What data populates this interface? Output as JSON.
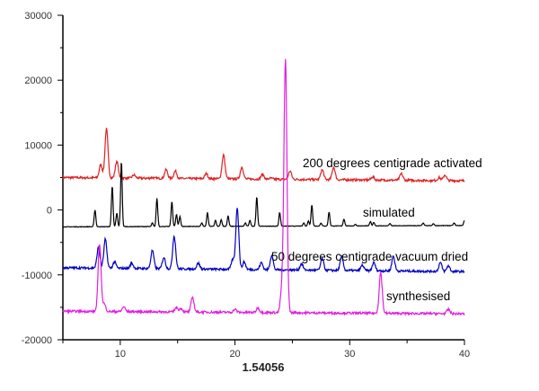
{
  "chart_data": {
    "type": "line",
    "title": "",
    "xlabel": "1.54056",
    "ylabel": "",
    "xlim": [
      5,
      40
    ],
    "ylim": [
      -20000,
      30000
    ],
    "xticks": [
      10,
      20,
      30,
      40
    ],
    "yticks": [
      30000,
      20000,
      10000,
      0,
      -10000,
      -20000
    ],
    "ytick_labels": [
      "30000",
      "20000",
      "10000",
      "0",
      "-10000",
      "-20000"
    ],
    "xtick_labels": [
      "10",
      "20",
      "30",
      "40"
    ],
    "grid": false,
    "series": [
      {
        "name": "200 degrees centigrade activated",
        "color": "#e02020",
        "baseline": [
          5000,
          4500
        ],
        "peaks": [
          [
            8.3,
            7000
          ],
          [
            8.8,
            12500
          ],
          [
            9.7,
            7500
          ],
          [
            11.2,
            5400
          ],
          [
            12.8,
            5000
          ],
          [
            14.0,
            6200
          ],
          [
            14.8,
            6000
          ],
          [
            17.5,
            5600
          ],
          [
            19.0,
            8500
          ],
          [
            20.6,
            6600
          ],
          [
            22.4,
            5500
          ],
          [
            23.1,
            4900
          ],
          [
            24.8,
            6000
          ],
          [
            27.6,
            6200
          ],
          [
            28.6,
            6600
          ],
          [
            32.0,
            5100
          ],
          [
            34.5,
            5600
          ],
          [
            37.8,
            5000
          ],
          [
            38.3,
            5400
          ]
        ]
      },
      {
        "name": "simulated",
        "color": "#000000",
        "baseline": [
          -2600,
          -2400
        ],
        "peaks": [
          [
            7.8,
            0
          ],
          [
            9.3,
            3700
          ],
          [
            9.7,
            -500
          ],
          [
            10.1,
            7500
          ],
          [
            12.8,
            -2000
          ],
          [
            13.2,
            1800
          ],
          [
            14.5,
            1300
          ],
          [
            14.9,
            -700
          ],
          [
            15.2,
            -1000
          ],
          [
            17.1,
            -2000
          ],
          [
            17.6,
            -400
          ],
          [
            18.3,
            -1600
          ],
          [
            18.8,
            -1500
          ],
          [
            19.4,
            -900
          ],
          [
            20.9,
            -2000
          ],
          [
            21.3,
            -1600
          ],
          [
            21.9,
            2000
          ],
          [
            23.9,
            -400
          ],
          [
            26.0,
            -2000
          ],
          [
            26.4,
            -1700
          ],
          [
            26.7,
            800
          ],
          [
            27.5,
            -2000
          ],
          [
            28.2,
            -300
          ],
          [
            29.5,
            -1400
          ],
          [
            30.5,
            -2200
          ],
          [
            31.8,
            -1800
          ],
          [
            32.1,
            -1900
          ],
          [
            33.5,
            -2100
          ],
          [
            36.4,
            -2000
          ],
          [
            37.3,
            -2100
          ],
          [
            39.1,
            -2000
          ],
          [
            40.0,
            -1600
          ]
        ]
      },
      {
        "name": "50 degrees centigrade vacuum dried",
        "color": "#0000c0",
        "baseline": [
          -8900,
          -9500
        ],
        "peaks": [
          [
            8.1,
            -5800
          ],
          [
            8.7,
            -4500
          ],
          [
            9.5,
            -8000
          ],
          [
            11.0,
            -8200
          ],
          [
            12.8,
            -6200
          ],
          [
            13.8,
            -7300
          ],
          [
            14.7,
            -4000
          ],
          [
            16.8,
            -8200
          ],
          [
            19.8,
            -7700
          ],
          [
            20.2,
            400
          ],
          [
            20.8,
            -8000
          ],
          [
            22.3,
            -8100
          ],
          [
            23.2,
            -7000
          ],
          [
            25.8,
            -8300
          ],
          [
            27.6,
            -7500
          ],
          [
            29.3,
            -7200
          ],
          [
            31.1,
            -8500
          ],
          [
            32.1,
            -8100
          ],
          [
            33.8,
            -7100
          ],
          [
            37.9,
            -8100
          ],
          [
            38.6,
            -8600
          ]
        ]
      },
      {
        "name": "synthesised",
        "color": "#e020e0",
        "baseline": [
          -15600,
          -16000
        ],
        "peaks": [
          [
            8.2,
            -5300
          ],
          [
            8.6,
            -14500
          ],
          [
            10.3,
            -14900
          ],
          [
            14.9,
            -15000
          ],
          [
            15.3,
            -15200
          ],
          [
            16.3,
            -13500
          ],
          [
            20.0,
            -15300
          ],
          [
            22.0,
            -15100
          ],
          [
            24.1,
            -12000
          ],
          [
            24.4,
            23000
          ],
          [
            32.7,
            -9600
          ],
          [
            38.6,
            -15300
          ]
        ]
      }
    ]
  }
}
